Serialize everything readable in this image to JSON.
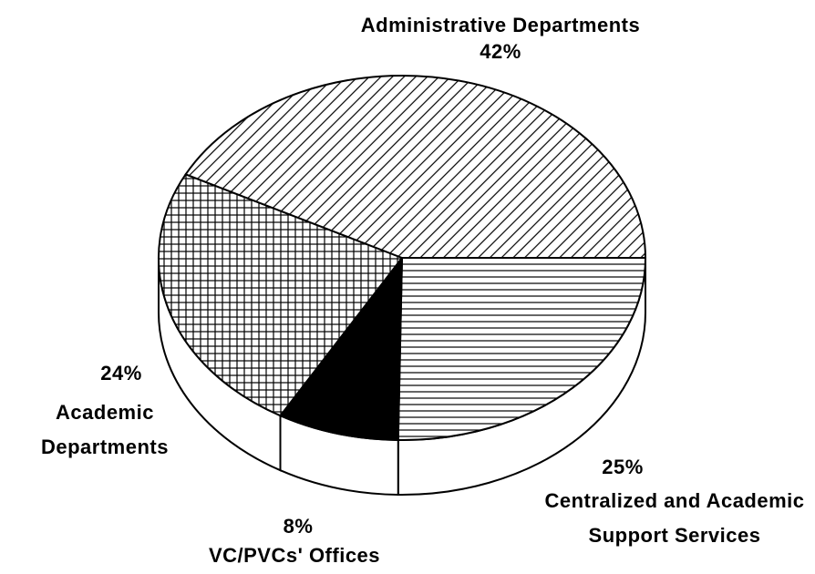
{
  "chart_data": {
    "type": "pie3d",
    "categories": [
      "Centralized and Academic Support Services",
      "VC/PVCs' Offices",
      "Academic Departments",
      "Administrative Departments"
    ],
    "values": [
      25,
      8,
      24,
      42
    ],
    "value_labels": [
      "25%",
      "8%",
      "24%",
      "42%"
    ],
    "patterns": [
      "horizontal",
      "solid",
      "grid",
      "diagonal"
    ],
    "color": "#000000"
  }
}
